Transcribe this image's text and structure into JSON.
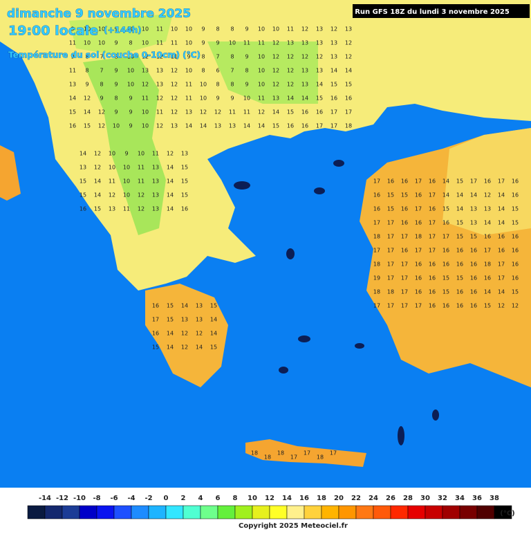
{
  "header": {
    "date": "dimanche 9 novembre 2025",
    "time": "19:00 locale",
    "lead": "(+144h)",
    "parameter": "Température du sol (couche 0-10cm) (°C)",
    "run": "Run GFS 18Z du lundi 3 novembre 2025"
  },
  "map": {
    "north": [
      [
        9,
        10,
        10,
        9,
        10,
        10,
        11,
        10,
        10,
        9,
        8,
        8,
        9,
        10,
        10,
        11,
        12,
        13,
        12,
        13
      ],
      [
        11,
        10,
        10,
        9,
        8,
        10,
        11,
        11,
        10,
        9,
        9,
        10,
        11,
        11,
        12,
        13,
        13,
        13,
        13,
        12
      ],
      [
        9,
        8,
        7,
        8,
        10,
        12,
        12,
        11,
        9,
        8,
        7,
        8,
        9,
        10,
        12,
        12,
        12,
        12,
        13,
        12
      ],
      [
        11,
        8,
        7,
        9,
        10,
        13,
        13,
        12,
        10,
        8,
        6,
        7,
        8,
        10,
        12,
        12,
        13,
        13,
        14,
        14
      ],
      [
        13,
        9,
        8,
        9,
        10,
        12,
        13,
        12,
        11,
        10,
        8,
        8,
        9,
        10,
        12,
        12,
        13,
        14,
        15,
        15
      ],
      [
        14,
        12,
        9,
        8,
        9,
        11,
        12,
        12,
        11,
        10,
        9,
        9,
        10,
        11,
        13,
        14,
        14,
        15,
        16,
        16
      ],
      [
        15,
        14,
        12,
        9,
        9,
        10,
        11,
        12,
        13,
        12,
        12,
        11,
        11,
        12,
        14,
        15,
        16,
        16,
        17,
        17
      ],
      [
        16,
        15,
        12,
        10,
        9,
        10,
        12,
        13,
        14,
        14,
        13,
        13,
        14,
        14,
        15,
        16,
        16,
        17,
        17,
        18
      ]
    ],
    "greece": [
      [
        14,
        12,
        10,
        9,
        10,
        11,
        12,
        13
      ],
      [
        13,
        12,
        10,
        10,
        11,
        13,
        14,
        15
      ],
      [
        15,
        14,
        11,
        10,
        11,
        13,
        14,
        15
      ],
      [
        15,
        14,
        12,
        10,
        12,
        13,
        14,
        15
      ],
      [
        16,
        15,
        13,
        11,
        12,
        13,
        14,
        16
      ]
    ],
    "peloponnese": [
      [
        16,
        15,
        14,
        13,
        15
      ],
      [
        17,
        15,
        13,
        13,
        14
      ],
      [
        16,
        14,
        12,
        12,
        14
      ],
      [
        15,
        14,
        12,
        14,
        15
      ]
    ],
    "anatolia": [
      [
        17,
        16,
        16,
        17,
        16,
        14,
        15,
        17,
        16,
        17,
        16
      ],
      [
        16,
        15,
        15,
        16,
        17,
        14,
        14,
        14,
        12,
        14,
        16
      ],
      [
        16,
        15,
        16,
        17,
        16,
        15,
        14,
        13,
        13,
        14,
        15
      ],
      [
        17,
        17,
        16,
        16,
        17,
        16,
        15,
        13,
        14,
        14,
        15
      ],
      [
        18,
        17,
        17,
        18,
        17,
        17,
        15,
        15,
        16,
        16,
        16
      ],
      [
        17,
        17,
        16,
        17,
        17,
        16,
        16,
        16,
        17,
        16,
        16
      ],
      [
        18,
        17,
        17,
        16,
        16,
        16,
        16,
        16,
        18,
        17,
        16
      ],
      [
        19,
        17,
        17,
        16,
        16,
        15,
        15,
        16,
        16,
        17,
        16
      ],
      [
        18,
        18,
        17,
        16,
        16,
        15,
        16,
        16,
        14,
        14,
        15
      ],
      [
        17,
        17,
        17,
        17,
        16,
        16,
        16,
        16,
        15,
        12,
        12
      ]
    ],
    "crete": [
      18,
      18,
      18,
      17,
      17,
      18,
      17
    ]
  },
  "legend": {
    "ticks": [
      -14,
      -12,
      -10,
      -8,
      -6,
      -4,
      -2,
      0,
      2,
      4,
      6,
      8,
      10,
      12,
      14,
      16,
      18,
      20,
      22,
      24,
      26,
      28,
      30,
      32,
      34,
      36,
      38
    ],
    "colors": [
      "#0a1a40",
      "#14286e",
      "#1c3c96",
      "#0000c8",
      "#0a14f0",
      "#1e50ff",
      "#1e8cff",
      "#1eb4ff",
      "#32e6ff",
      "#50ffd2",
      "#6eff8c",
      "#64f03c",
      "#a0f01e",
      "#e6f01e",
      "#ffff28",
      "#fff08c",
      "#ffd23c",
      "#ffb400",
      "#ff9600",
      "#ff7814",
      "#ff5a0a",
      "#ff2800",
      "#e60000",
      "#c80000",
      "#a00000",
      "#780000",
      "#500000",
      "#000000"
    ],
    "unit": "(°C)"
  },
  "footer": "Copyright 2025 Meteociel.fr"
}
